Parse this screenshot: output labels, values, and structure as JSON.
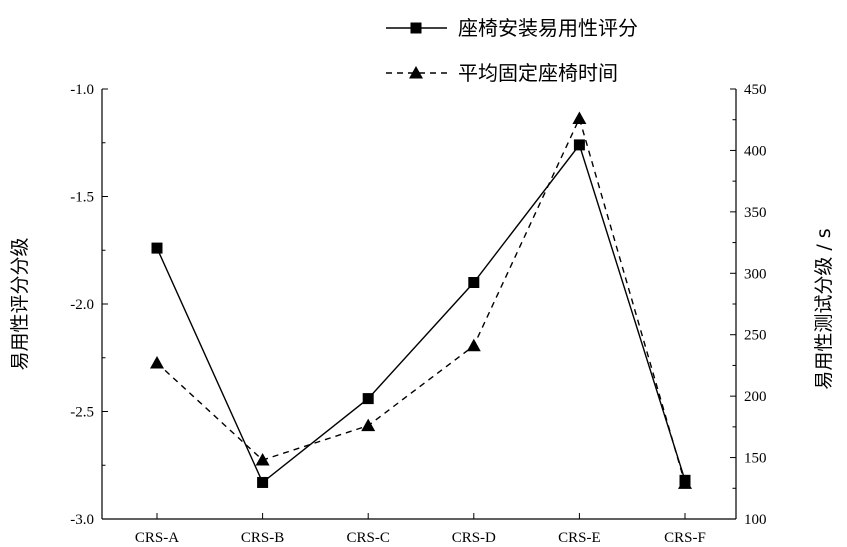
{
  "chart_data": {
    "type": "line",
    "categories": [
      "CRS-A",
      "CRS-B",
      "CRS-C",
      "CRS-D",
      "CRS-E",
      "CRS-F"
    ],
    "series": [
      {
        "name": "座椅安装易用性评分",
        "axis": "left",
        "marker": "square",
        "line_style": "solid",
        "values": [
          -1.74,
          -2.83,
          -2.44,
          -1.9,
          -1.26,
          -2.82
        ]
      },
      {
        "name": "平均固定座椅时间",
        "axis": "right",
        "marker": "triangle",
        "line_style": "dashed",
        "values": [
          227,
          148,
          176,
          241,
          426,
          129
        ]
      }
    ],
    "y_left": {
      "label": "易用性评分分级",
      "range": [
        -3.0,
        -1.0
      ],
      "ticks": [
        "-1.0",
        "-1.5",
        "-2.0",
        "-2.5",
        "-3.0"
      ]
    },
    "y_right": {
      "label": "易用性测试分级 / s",
      "range": [
        100,
        450
      ],
      "ticks": [
        "450",
        "400",
        "350",
        "300",
        "250",
        "200",
        "150",
        "100"
      ]
    },
    "xlabel": "",
    "title": "",
    "legend_position": "top-right",
    "grid": false,
    "colors": {
      "line": "#000000",
      "background": "#ffffff"
    }
  }
}
